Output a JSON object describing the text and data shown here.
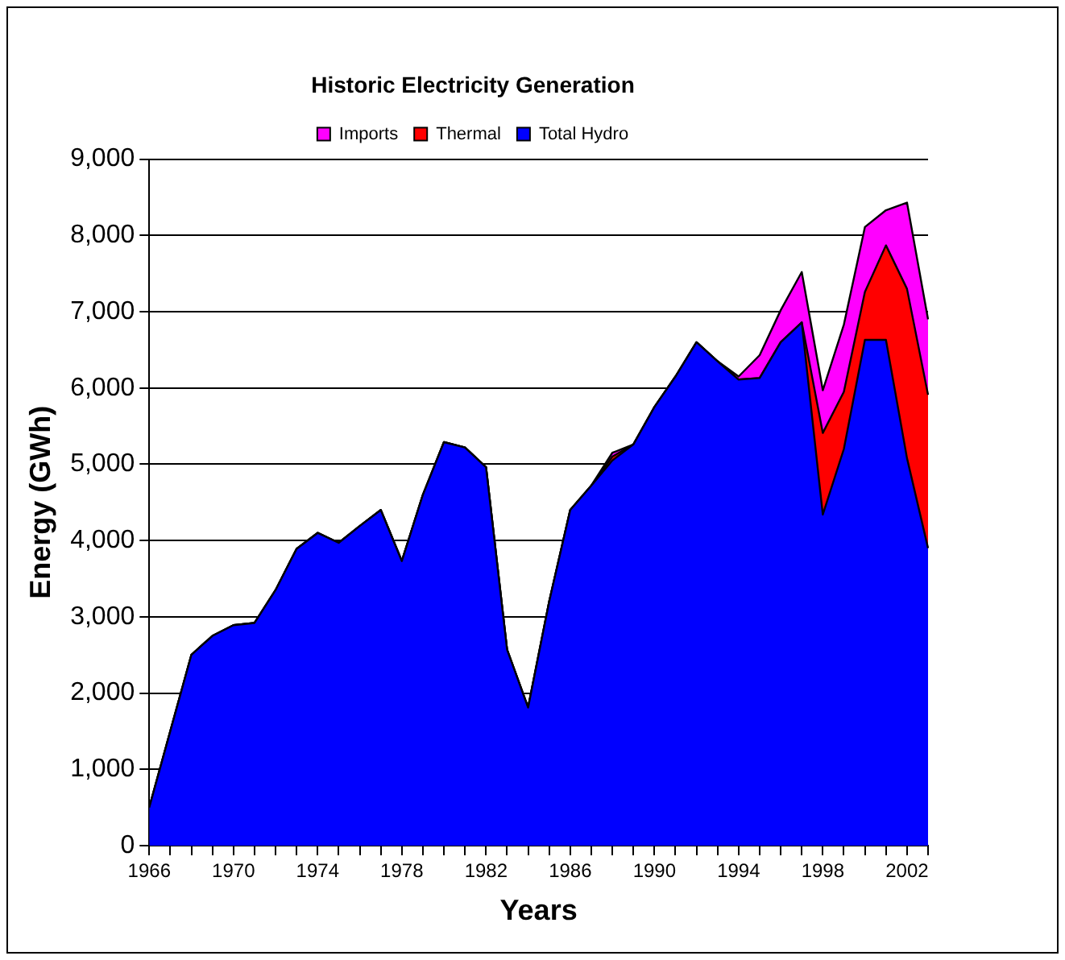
{
  "chart_data": {
    "type": "area",
    "stacked": true,
    "title": "Historic Electricity Generation",
    "xlabel": "Years",
    "ylabel": "Energy (GWh)",
    "categories": [
      "1966",
      null,
      null,
      null,
      "1970",
      null,
      null,
      null,
      "1974",
      null,
      null,
      null,
      "1978",
      null,
      null,
      null,
      "1982",
      null,
      null,
      null,
      "1986",
      null,
      null,
      null,
      "1990",
      null,
      null,
      null,
      "1994",
      null,
      null,
      null,
      "1998",
      null,
      null,
      null,
      "2002",
      null
    ],
    "series": [
      {
        "name": "Total Hydro",
        "color": "#0000ff",
        "values": [
          500,
          1500,
          2500,
          2750,
          2890,
          2920,
          3350,
          3890,
          4100,
          3970,
          4190,
          4400,
          3730,
          4600,
          5290,
          5220,
          4960,
          2570,
          1810,
          3200,
          4400,
          4720,
          5050,
          5260,
          5750,
          6150,
          6600,
          6350,
          6110,
          6130,
          6600,
          6860,
          4340,
          5200,
          6630,
          6630,
          5080,
          3900
        ]
      },
      {
        "name": "Thermal",
        "color": "#ff0000",
        "values": [
          0,
          0,
          0,
          0,
          0,
          0,
          0,
          0,
          0,
          0,
          0,
          0,
          0,
          0,
          0,
          0,
          0,
          0,
          0,
          0,
          0,
          0,
          50,
          0,
          0,
          0,
          0,
          0,
          0,
          0,
          0,
          0,
          1070,
          750,
          630,
          1240,
          2220,
          2010
        ]
      },
      {
        "name": "Imports",
        "color": "#ff00ff",
        "values": [
          0,
          0,
          0,
          0,
          0,
          0,
          0,
          0,
          0,
          0,
          0,
          0,
          0,
          0,
          0,
          0,
          0,
          0,
          0,
          0,
          0,
          0,
          50,
          0,
          0,
          0,
          0,
          0,
          40,
          300,
          420,
          660,
          560,
          880,
          850,
          460,
          1130,
          990
        ]
      }
    ],
    "ylim": [
      0,
      9000
    ],
    "yticks": [
      {
        "value": 0,
        "label": "0"
      },
      {
        "value": 1000,
        "label": "1,000"
      },
      {
        "value": 2000,
        "label": "2,000"
      },
      {
        "value": 3000,
        "label": "3,000"
      },
      {
        "value": 4000,
        "label": "4,000"
      },
      {
        "value": 5000,
        "label": "5,000"
      },
      {
        "value": 6000,
        "label": "6,000"
      },
      {
        "value": 7000,
        "label": "7,000"
      },
      {
        "value": 8000,
        "label": "8,000"
      },
      {
        "value": 9000,
        "label": "9,000"
      }
    ],
    "grid": "y",
    "legend": "top",
    "marker": "none"
  }
}
